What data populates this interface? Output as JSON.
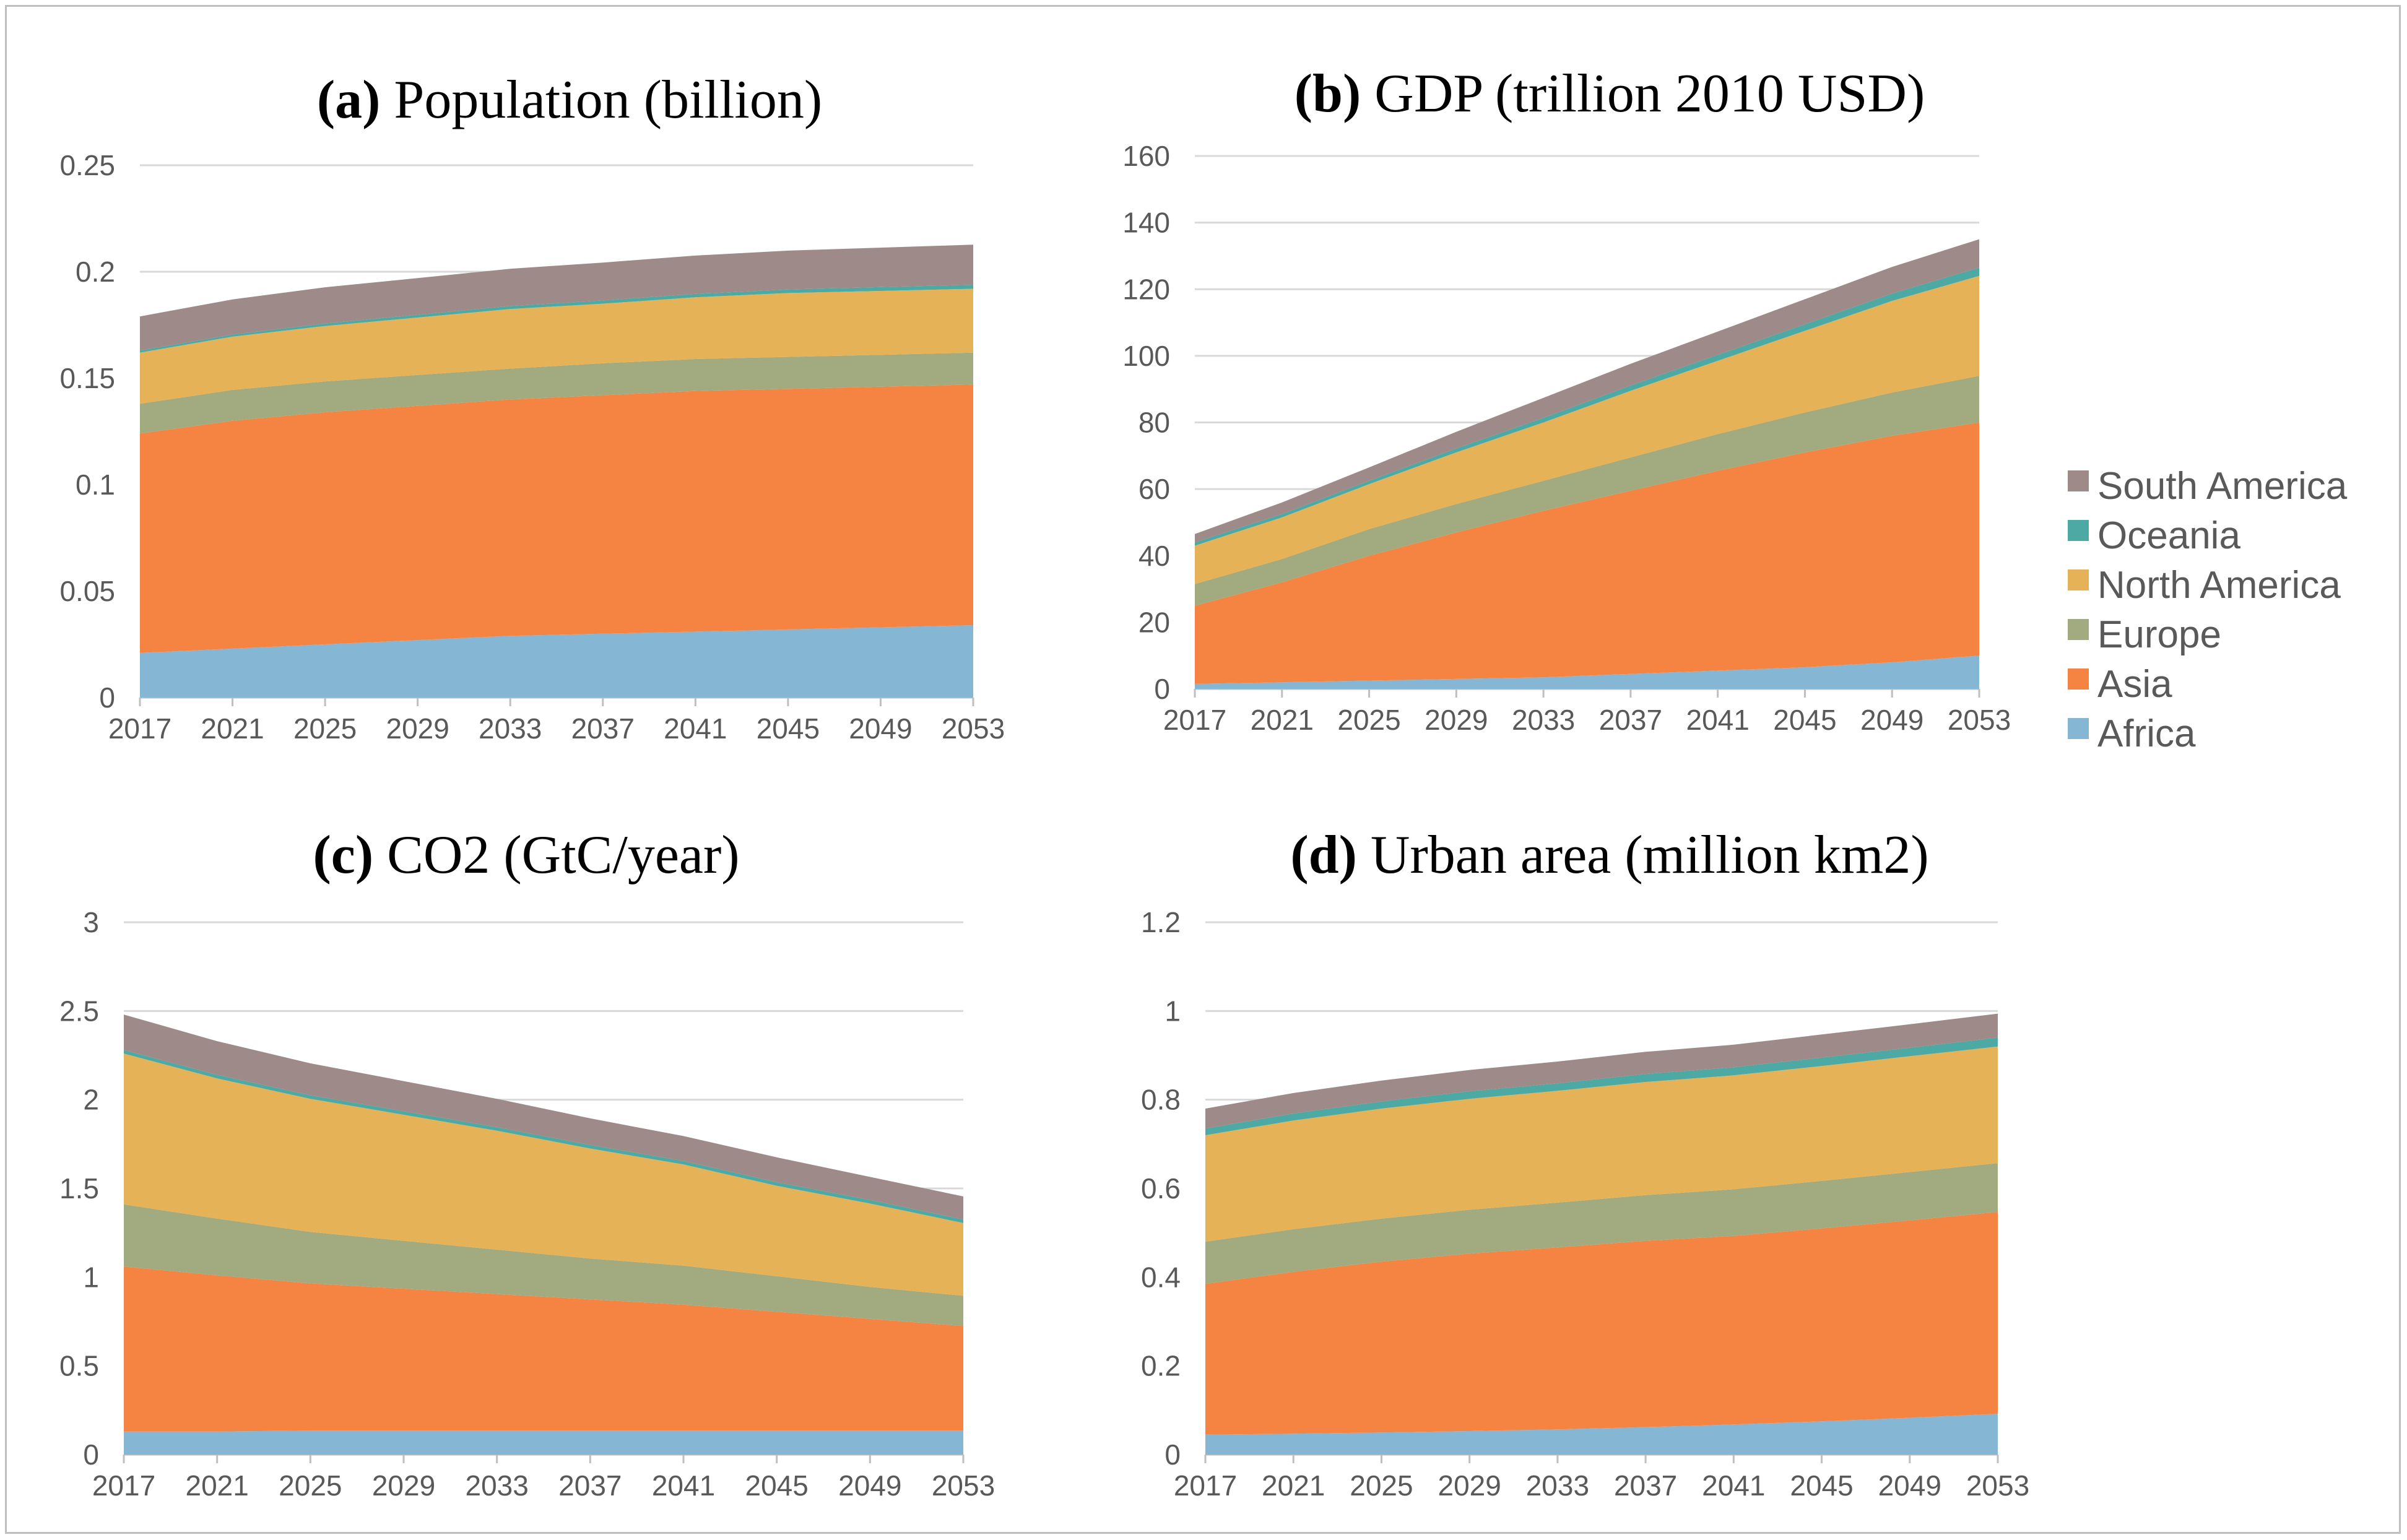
{
  "legend": [
    {
      "name": "South America",
      "color": "#9e8a88"
    },
    {
      "name": "Oceania",
      "color": "#4da9a3"
    },
    {
      "name": "North America",
      "color": "#e6b257"
    },
    {
      "name": "Europe",
      "color": "#a1ab7f"
    },
    {
      "name": "Asia",
      "color": "#f58443"
    },
    {
      "name": "Africa",
      "color": "#85b6d4"
    }
  ],
  "chart_data": [
    {
      "type": "area",
      "stacked": true,
      "title_prefix": "(a)",
      "title_rest": " Population (billion)",
      "x": [
        "2017",
        "2021",
        "2025",
        "2029",
        "2033",
        "2037",
        "2041",
        "2045",
        "2049",
        "2053"
      ],
      "y_ticks": [
        "0",
        "0.05",
        "0.1",
        "0.15",
        "0.2",
        "0.25"
      ],
      "ylim": [
        0,
        0.25
      ],
      "grid": true,
      "series": [
        {
          "name": "Africa",
          "values": [
            0.021,
            0.023,
            0.025,
            0.027,
            0.029,
            0.03,
            0.031,
            0.032,
            0.033,
            0.034
          ]
        },
        {
          "name": "Asia",
          "values": [
            0.103,
            0.107,
            0.109,
            0.11,
            0.111,
            0.112,
            0.113,
            0.113,
            0.113,
            0.113
          ]
        },
        {
          "name": "Europe",
          "values": [
            0.014,
            0.0145,
            0.0145,
            0.0145,
            0.0145,
            0.015,
            0.015,
            0.015,
            0.015,
            0.015
          ]
        },
        {
          "name": "North America",
          "values": [
            0.024,
            0.025,
            0.026,
            0.027,
            0.028,
            0.028,
            0.029,
            0.03,
            0.03,
            0.03
          ]
        },
        {
          "name": "Oceania",
          "values": [
            0.001,
            0.001,
            0.0012,
            0.0013,
            0.0014,
            0.0015,
            0.0016,
            0.0017,
            0.0018,
            0.0019
          ]
        },
        {
          "name": "South America",
          "values": [
            0.016,
            0.0165,
            0.017,
            0.0172,
            0.0175,
            0.0178,
            0.018,
            0.0182,
            0.0185,
            0.0188
          ]
        }
      ]
    },
    {
      "type": "area",
      "stacked": true,
      "title_prefix": "(b)",
      "title_rest": " GDP (trillion 2010 USD)",
      "x": [
        "2017",
        "2021",
        "2025",
        "2029",
        "2033",
        "2037",
        "2041",
        "2045",
        "2049",
        "2053"
      ],
      "y_ticks": [
        "0",
        "20",
        "40",
        "60",
        "80",
        "100",
        "120",
        "140",
        "160"
      ],
      "ylim": [
        0,
        160
      ],
      "grid": true,
      "series": [
        {
          "name": "Africa",
          "values": [
            1.5,
            2.0,
            2.5,
            3.0,
            3.5,
            4.5,
            5.5,
            6.5,
            8.0,
            10.0
          ]
        },
        {
          "name": "Asia",
          "values": [
            23.5,
            30.0,
            37.5,
            44.0,
            50.0,
            55.0,
            60.0,
            64.5,
            68.0,
            70.0
          ]
        },
        {
          "name": "Europe",
          "values": [
            6.5,
            7.0,
            8.0,
            8.5,
            9.0,
            10.0,
            11.0,
            12.0,
            13.0,
            14.0
          ]
        },
        {
          "name": "North America",
          "values": [
            11.5,
            12.5,
            13.5,
            15.5,
            17.5,
            20.0,
            22.0,
            24.5,
            27.5,
            30.0
          ]
        },
        {
          "name": "Oceania",
          "values": [
            1.0,
            1.0,
            1.0,
            1.2,
            1.4,
            1.6,
            1.8,
            2.0,
            2.2,
            2.5
          ]
        },
        {
          "name": "South America",
          "values": [
            2.5,
            3.5,
            4.0,
            5.0,
            6.0,
            6.5,
            7.0,
            7.5,
            8.0,
            8.5
          ]
        }
      ]
    },
    {
      "type": "area",
      "stacked": true,
      "title_prefix": "(c)",
      "title_rest": " CO2 (GtC/year)",
      "x": [
        "2017",
        "2021",
        "2025",
        "2029",
        "2033",
        "2037",
        "2041",
        "2045",
        "2049",
        "2053"
      ],
      "y_ticks": [
        "0",
        "0.5",
        "1",
        "1.5",
        "2",
        "2.5",
        "3"
      ],
      "ylim": [
        0,
        3
      ],
      "grid": true,
      "series": [
        {
          "name": "Africa",
          "values": [
            0.13,
            0.13,
            0.135,
            0.135,
            0.135,
            0.135,
            0.135,
            0.135,
            0.135,
            0.135
          ]
        },
        {
          "name": "Asia",
          "values": [
            0.93,
            0.88,
            0.83,
            0.8,
            0.77,
            0.74,
            0.71,
            0.67,
            0.63,
            0.59
          ]
        },
        {
          "name": "Europe",
          "values": [
            0.35,
            0.32,
            0.29,
            0.27,
            0.25,
            0.23,
            0.22,
            0.2,
            0.18,
            0.17
          ]
        },
        {
          "name": "North America",
          "values": [
            0.85,
            0.79,
            0.75,
            0.71,
            0.67,
            0.62,
            0.57,
            0.51,
            0.47,
            0.41
          ]
        },
        {
          "name": "Oceania",
          "values": [
            0.02,
            0.02,
            0.02,
            0.02,
            0.02,
            0.02,
            0.02,
            0.02,
            0.02,
            0.02
          ]
        },
        {
          "name": "South America",
          "values": [
            0.2,
            0.19,
            0.18,
            0.17,
            0.16,
            0.15,
            0.14,
            0.14,
            0.13,
            0.13
          ]
        }
      ]
    },
    {
      "type": "area",
      "stacked": true,
      "title_prefix": "(d)",
      "title_rest": " Urban area (million km2)",
      "x": [
        "2017",
        "2021",
        "2025",
        "2029",
        "2033",
        "2037",
        "2041",
        "2045",
        "2049",
        "2053"
      ],
      "y_ticks": [
        "0",
        "0.2",
        "0.4",
        "0.6",
        "0.8",
        "1",
        "1.2"
      ],
      "ylim": [
        0,
        1.2
      ],
      "grid": true,
      "series": [
        {
          "name": "Africa",
          "values": [
            0.045,
            0.047,
            0.05,
            0.053,
            0.057,
            0.062,
            0.068,
            0.075,
            0.083,
            0.092
          ]
        },
        {
          "name": "Asia",
          "values": [
            0.34,
            0.365,
            0.385,
            0.4,
            0.41,
            0.42,
            0.425,
            0.435,
            0.445,
            0.455
          ]
        },
        {
          "name": "Europe",
          "values": [
            0.095,
            0.096,
            0.097,
            0.099,
            0.101,
            0.103,
            0.105,
            0.107,
            0.109,
            0.11
          ]
        },
        {
          "name": "North America",
          "values": [
            0.24,
            0.245,
            0.248,
            0.25,
            0.252,
            0.255,
            0.257,
            0.259,
            0.261,
            0.263
          ]
        },
        {
          "name": "Oceania",
          "values": [
            0.015,
            0.016,
            0.016,
            0.017,
            0.017,
            0.018,
            0.018,
            0.019,
            0.019,
            0.02
          ]
        },
        {
          "name": "South America",
          "values": [
            0.045,
            0.046,
            0.047,
            0.048,
            0.049,
            0.05,
            0.051,
            0.052,
            0.053,
            0.054
          ]
        }
      ]
    }
  ]
}
